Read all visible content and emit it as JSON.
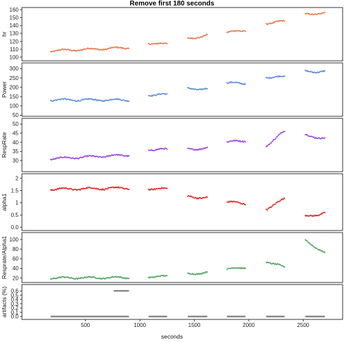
{
  "title": "Remove first 180 seconds",
  "x_axis": {
    "label": "seconds",
    "ticks": [
      500,
      1000,
      1500,
      2000,
      2500
    ],
    "range": [
      80,
      2800
    ]
  },
  "colors": {
    "hr": "#e8784a",
    "Power": "#5a8ad8",
    "RespRate": "#9b3fe0",
    "alpha1": "#e0201a",
    "Respiration_Alpha1": "#4aa35a",
    "artifacts": "#8a8a8a",
    "frame": "#000000",
    "background": "#ffffff"
  },
  "chart_data": [
    {
      "type": "scatter",
      "ylabel": "hr",
      "yticks": [
        100,
        110,
        120,
        130,
        140,
        150,
        160
      ],
      "ylim": [
        98,
        160
      ],
      "series": [
        {
          "segments": [
            {
              "x": [
                180,
                900
              ],
              "y": [
                108,
                112
              ]
            },
            {
              "x": [
                1080,
                1250
              ],
              "y": [
                118,
                116
              ]
            },
            {
              "x": [
                1440,
                1620
              ],
              "y": [
                123,
                128
              ]
            },
            {
              "x": [
                1800,
                1970
              ],
              "y": [
                131,
                134
              ]
            },
            {
              "x": [
                2160,
                2330
              ],
              "y": [
                143,
                145
              ]
            },
            {
              "x": [
                2520,
                2700
              ],
              "y": [
                154,
                156
              ]
            }
          ]
        }
      ]
    },
    {
      "type": "scatter",
      "ylabel": "Power",
      "yticks": [
        50,
        100,
        150,
        200,
        250,
        300
      ],
      "ylim": [
        55,
        320
      ],
      "series": [
        {
          "segments": [
            {
              "x": [
                180,
                900
              ],
              "y": [
                132,
                132
              ]
            },
            {
              "x": [
                1080,
                1250
              ],
              "y": [
                160,
                160
              ]
            },
            {
              "x": [
                1440,
                1620
              ],
              "y": [
                192,
                192
              ]
            },
            {
              "x": [
                1800,
                1970
              ],
              "y": [
                222,
                222
              ]
            },
            {
              "x": [
                2160,
                2330
              ],
              "y": [
                255,
                255
              ]
            },
            {
              "x": [
                2520,
                2700
              ],
              "y": [
                285,
                285
              ]
            }
          ]
        }
      ]
    },
    {
      "type": "scatter",
      "ylabel": "RespRate",
      "yticks": [
        30,
        35,
        40,
        45,
        50
      ],
      "ylim": [
        25,
        52
      ],
      "series": [
        {
          "segments": [
            {
              "x": [
                180,
                900
              ],
              "y": [
                31,
                33
              ]
            },
            {
              "x": [
                1080,
                1250
              ],
              "y": [
                36,
                36
              ]
            },
            {
              "x": [
                1440,
                1620
              ],
              "y": [
                36,
                37
              ]
            },
            {
              "x": [
                1800,
                1970
              ],
              "y": [
                40,
                41
              ]
            },
            {
              "x": [
                2160,
                2330
              ],
              "y": [
                38,
                46
              ]
            },
            {
              "x": [
                2520,
                2700
              ],
              "y": [
                44,
                42
              ]
            }
          ]
        }
      ]
    },
    {
      "type": "scatter",
      "ylabel": "alpha1",
      "yticks": [
        0.0,
        0.5,
        1.0,
        1.5,
        2.0
      ],
      "ylim": [
        -0.05,
        2.1
      ],
      "series": [
        {
          "segments": [
            {
              "x": [
                180,
                900
              ],
              "y": [
                1.55,
                1.6
              ]
            },
            {
              "x": [
                1080,
                1250
              ],
              "y": [
                1.58,
                1.55
              ]
            },
            {
              "x": [
                1440,
                1620
              ],
              "y": [
                1.25,
                1.2
              ]
            },
            {
              "x": [
                1800,
                1970
              ],
              "y": [
                1.02,
                0.98
              ]
            },
            {
              "x": [
                2160,
                2330
              ],
              "y": [
                0.75,
                1.15
              ]
            },
            {
              "x": [
                2520,
                2700
              ],
              "y": [
                0.45,
                0.57
              ]
            }
          ]
        }
      ]
    },
    {
      "type": "scatter",
      "ylabel": "Resprate/Alpha1",
      "yticks": [
        20,
        40,
        60,
        80,
        100
      ],
      "ylim": [
        15,
        110
      ],
      "series": [
        {
          "segments": [
            {
              "x": [
                180,
                900
              ],
              "y": [
                20,
                21
              ]
            },
            {
              "x": [
                1080,
                1250
              ],
              "y": [
                23,
                23
              ]
            },
            {
              "x": [
                1440,
                1620
              ],
              "y": [
                28,
                32
              ]
            },
            {
              "x": [
                1800,
                1970
              ],
              "y": [
                38,
                42
              ]
            },
            {
              "x": [
                2160,
                2330
              ],
              "y": [
                55,
                42
              ]
            },
            {
              "x": [
                2520,
                2700
              ],
              "y": [
                98,
                72
              ]
            }
          ]
        }
      ]
    },
    {
      "type": "bar",
      "ylabel": "artifacts (%)",
      "yticks": [
        0.0,
        0.1,
        0.2,
        0.3,
        0.4,
        0.5,
        0.6
      ],
      "ylim": [
        -0.02,
        0.7
      ],
      "series": [
        {
          "segments": [
            {
              "x": [
                180,
                900
              ],
              "y": [
                0,
                0
              ]
            },
            {
              "x": [
                760,
                900
              ],
              "y": [
                0.6,
                0.6
              ]
            },
            {
              "x": [
                1080,
                1250
              ],
              "y": [
                0,
                0
              ]
            },
            {
              "x": [
                1440,
                1620
              ],
              "y": [
                0,
                0
              ]
            },
            {
              "x": [
                1800,
                1970
              ],
              "y": [
                0,
                0
              ]
            },
            {
              "x": [
                2160,
                2330
              ],
              "y": [
                0,
                0
              ]
            },
            {
              "x": [
                2520,
                2700
              ],
              "y": [
                0,
                0
              ]
            }
          ]
        }
      ]
    }
  ]
}
